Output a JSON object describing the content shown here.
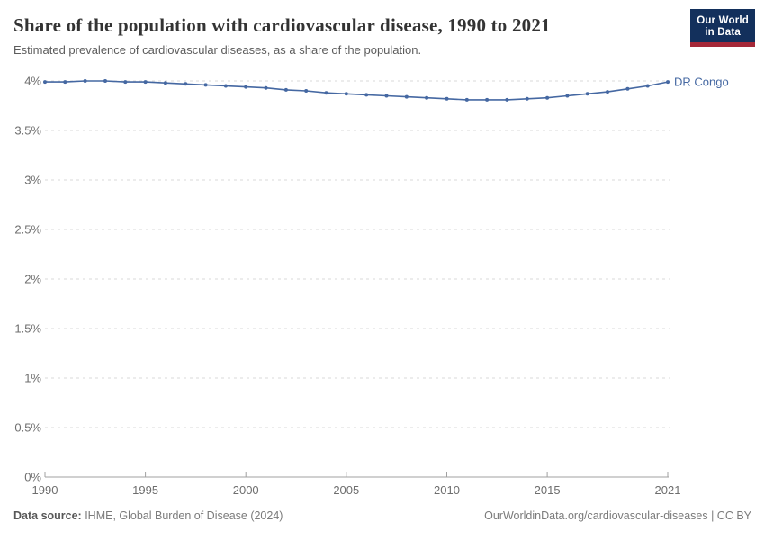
{
  "chart_data": {
    "type": "line",
    "title": "Share of the population with cardiovascular disease, 1990 to 2021",
    "subtitle": "Estimated prevalence of cardiovascular diseases, as a share of the population.",
    "xlim": [
      1990,
      2021
    ],
    "ylim": [
      0,
      4
    ],
    "x_ticks": [
      1990,
      1995,
      2000,
      2005,
      2010,
      2015,
      2021
    ],
    "y_ticks": [
      0,
      0.5,
      1,
      1.5,
      2,
      2.5,
      3,
      3.5,
      4
    ],
    "y_tick_labels": [
      "0%",
      "0.5%",
      "1%",
      "1.5%",
      "2%",
      "2.5%",
      "3%",
      "3.5%",
      "4%"
    ],
    "grid": "horizontal-dashed",
    "legend_position": "end-of-line-label",
    "series": [
      {
        "name": "DR Congo",
        "color": "#4568a2",
        "x": [
          1990,
          1991,
          1992,
          1993,
          1994,
          1995,
          1996,
          1997,
          1998,
          1999,
          2000,
          2001,
          2002,
          2003,
          2004,
          2005,
          2006,
          2007,
          2008,
          2009,
          2010,
          2011,
          2012,
          2013,
          2014,
          2015,
          2016,
          2017,
          2018,
          2019,
          2020,
          2021
        ],
        "values": [
          3.99,
          3.99,
          4.0,
          4.0,
          3.99,
          3.99,
          3.98,
          3.97,
          3.96,
          3.95,
          3.94,
          3.93,
          3.91,
          3.9,
          3.88,
          3.87,
          3.86,
          3.85,
          3.84,
          3.83,
          3.82,
          3.81,
          3.81,
          3.81,
          3.82,
          3.83,
          3.85,
          3.87,
          3.89,
          3.92,
          3.95,
          3.99
        ]
      }
    ]
  },
  "logo": {
    "line1": "Our World",
    "line2": "in Data"
  },
  "footer": {
    "source_label": "Data source:",
    "source_value": " IHME, Global Burden of Disease (2024)",
    "credit": "OurWorldinData.org/cardiovascular-diseases | CC BY"
  },
  "colors": {
    "accent_line": "#4568a2",
    "grid": "#d9d9d9",
    "axis": "#a0a0a0",
    "tick_label": "#6e6e6e",
    "logo_navy": "#13305c",
    "logo_red": "#a52838"
  }
}
